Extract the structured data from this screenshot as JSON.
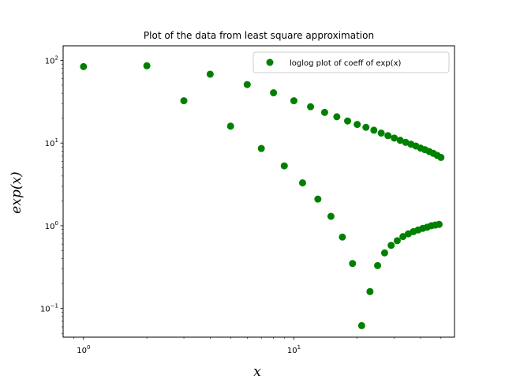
{
  "chart_data": {
    "type": "scatter",
    "title": "Plot of the data from least square approximation",
    "xlabel": "x",
    "ylabel": "exp(x)",
    "xscale": "log",
    "yscale": "log",
    "xlim": [
      0.8,
      58
    ],
    "ylim": [
      0.045,
      150
    ],
    "x_ticks": [
      {
        "value": 1,
        "label": "10^0"
      },
      {
        "value": 10,
        "label": "10^1"
      }
    ],
    "y_ticks": [
      {
        "value": 0.1,
        "label": "10^-1"
      },
      {
        "value": 1,
        "label": "10^0"
      },
      {
        "value": 10,
        "label": "10^1"
      },
      {
        "value": 100,
        "label": "10^2"
      }
    ],
    "grid": false,
    "legend": "top-right",
    "color": "#008000",
    "series": [
      {
        "name": "loglog plot of coeff of exp(x)",
        "x": [
          1,
          2,
          3,
          4,
          5,
          6,
          7,
          8,
          9,
          10,
          11,
          12,
          13,
          14,
          15,
          16,
          17,
          18,
          19,
          20,
          21,
          22,
          23,
          24,
          25,
          26,
          27,
          28,
          29,
          30,
          31,
          32,
          33,
          34,
          35,
          36,
          37,
          38,
          39,
          40,
          41,
          42,
          43,
          44,
          45,
          46,
          47,
          48,
          49,
          50
        ],
        "y": [
          84,
          86,
          32.5,
          68,
          16,
          51,
          8.6,
          40.5,
          5.3,
          32.5,
          3.3,
          27.5,
          2.1,
          23.5,
          1.3,
          20.8,
          0.73,
          18.5,
          0.35,
          16.8,
          0.062,
          15.5,
          0.16,
          14.3,
          0.33,
          13.2,
          0.47,
          12.3,
          0.58,
          11.5,
          0.66,
          10.8,
          0.74,
          10.2,
          0.8,
          9.7,
          0.85,
          9.2,
          0.89,
          8.7,
          0.93,
          8.3,
          0.96,
          7.9,
          1.0,
          7.5,
          1.02,
          7.1,
          1.04,
          6.7
        ]
      }
    ]
  }
}
